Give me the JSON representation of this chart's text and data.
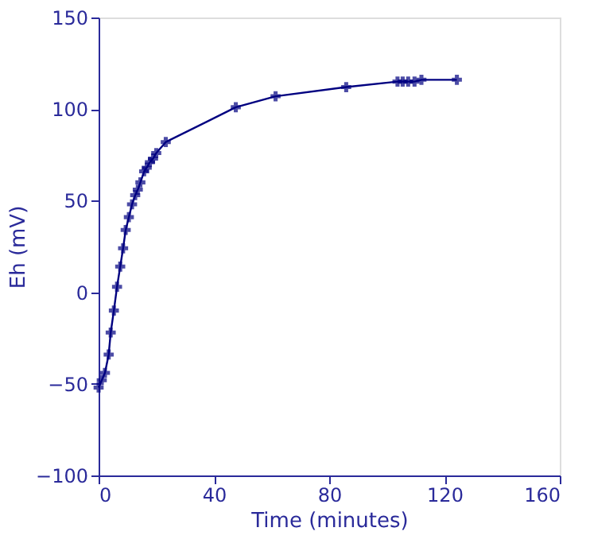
{
  "chart_data": {
    "type": "line",
    "xlabel": "Time (minutes)",
    "ylabel": "Eh (mV)",
    "xlim": [
      0,
      160
    ],
    "xticks": [
      0,
      40,
      80,
      120,
      160
    ],
    "ylim": [
      -100,
      150
    ],
    "yticks": [
      -100,
      -50,
      0,
      50,
      100,
      150
    ],
    "grid": false,
    "legend": false,
    "marker": "cross",
    "line_style": "solid",
    "series": [
      {
        "color": "#000080",
        "x": [
          0,
          1.1,
          2.2,
          3.5,
          4.2,
          5.3,
          6.4,
          7.5,
          8.5,
          9.4,
          10.5,
          11.6,
          12.7,
          13.6,
          14.5,
          15.8,
          16.7,
          17.8,
          18.9,
          20,
          23.3,
          47.6,
          61.4,
          85.9,
          103.7,
          105.5,
          107.4,
          109.6,
          112,
          124.3
        ],
        "values": [
          -52,
          -48,
          -44,
          -34,
          -22,
          -10,
          3,
          14,
          24,
          34,
          41,
          48,
          53,
          56,
          60,
          66,
          68,
          71,
          73,
          76,
          82,
          101,
          107,
          112,
          115,
          115,
          115,
          115,
          116,
          116
        ]
      }
    ]
  }
}
